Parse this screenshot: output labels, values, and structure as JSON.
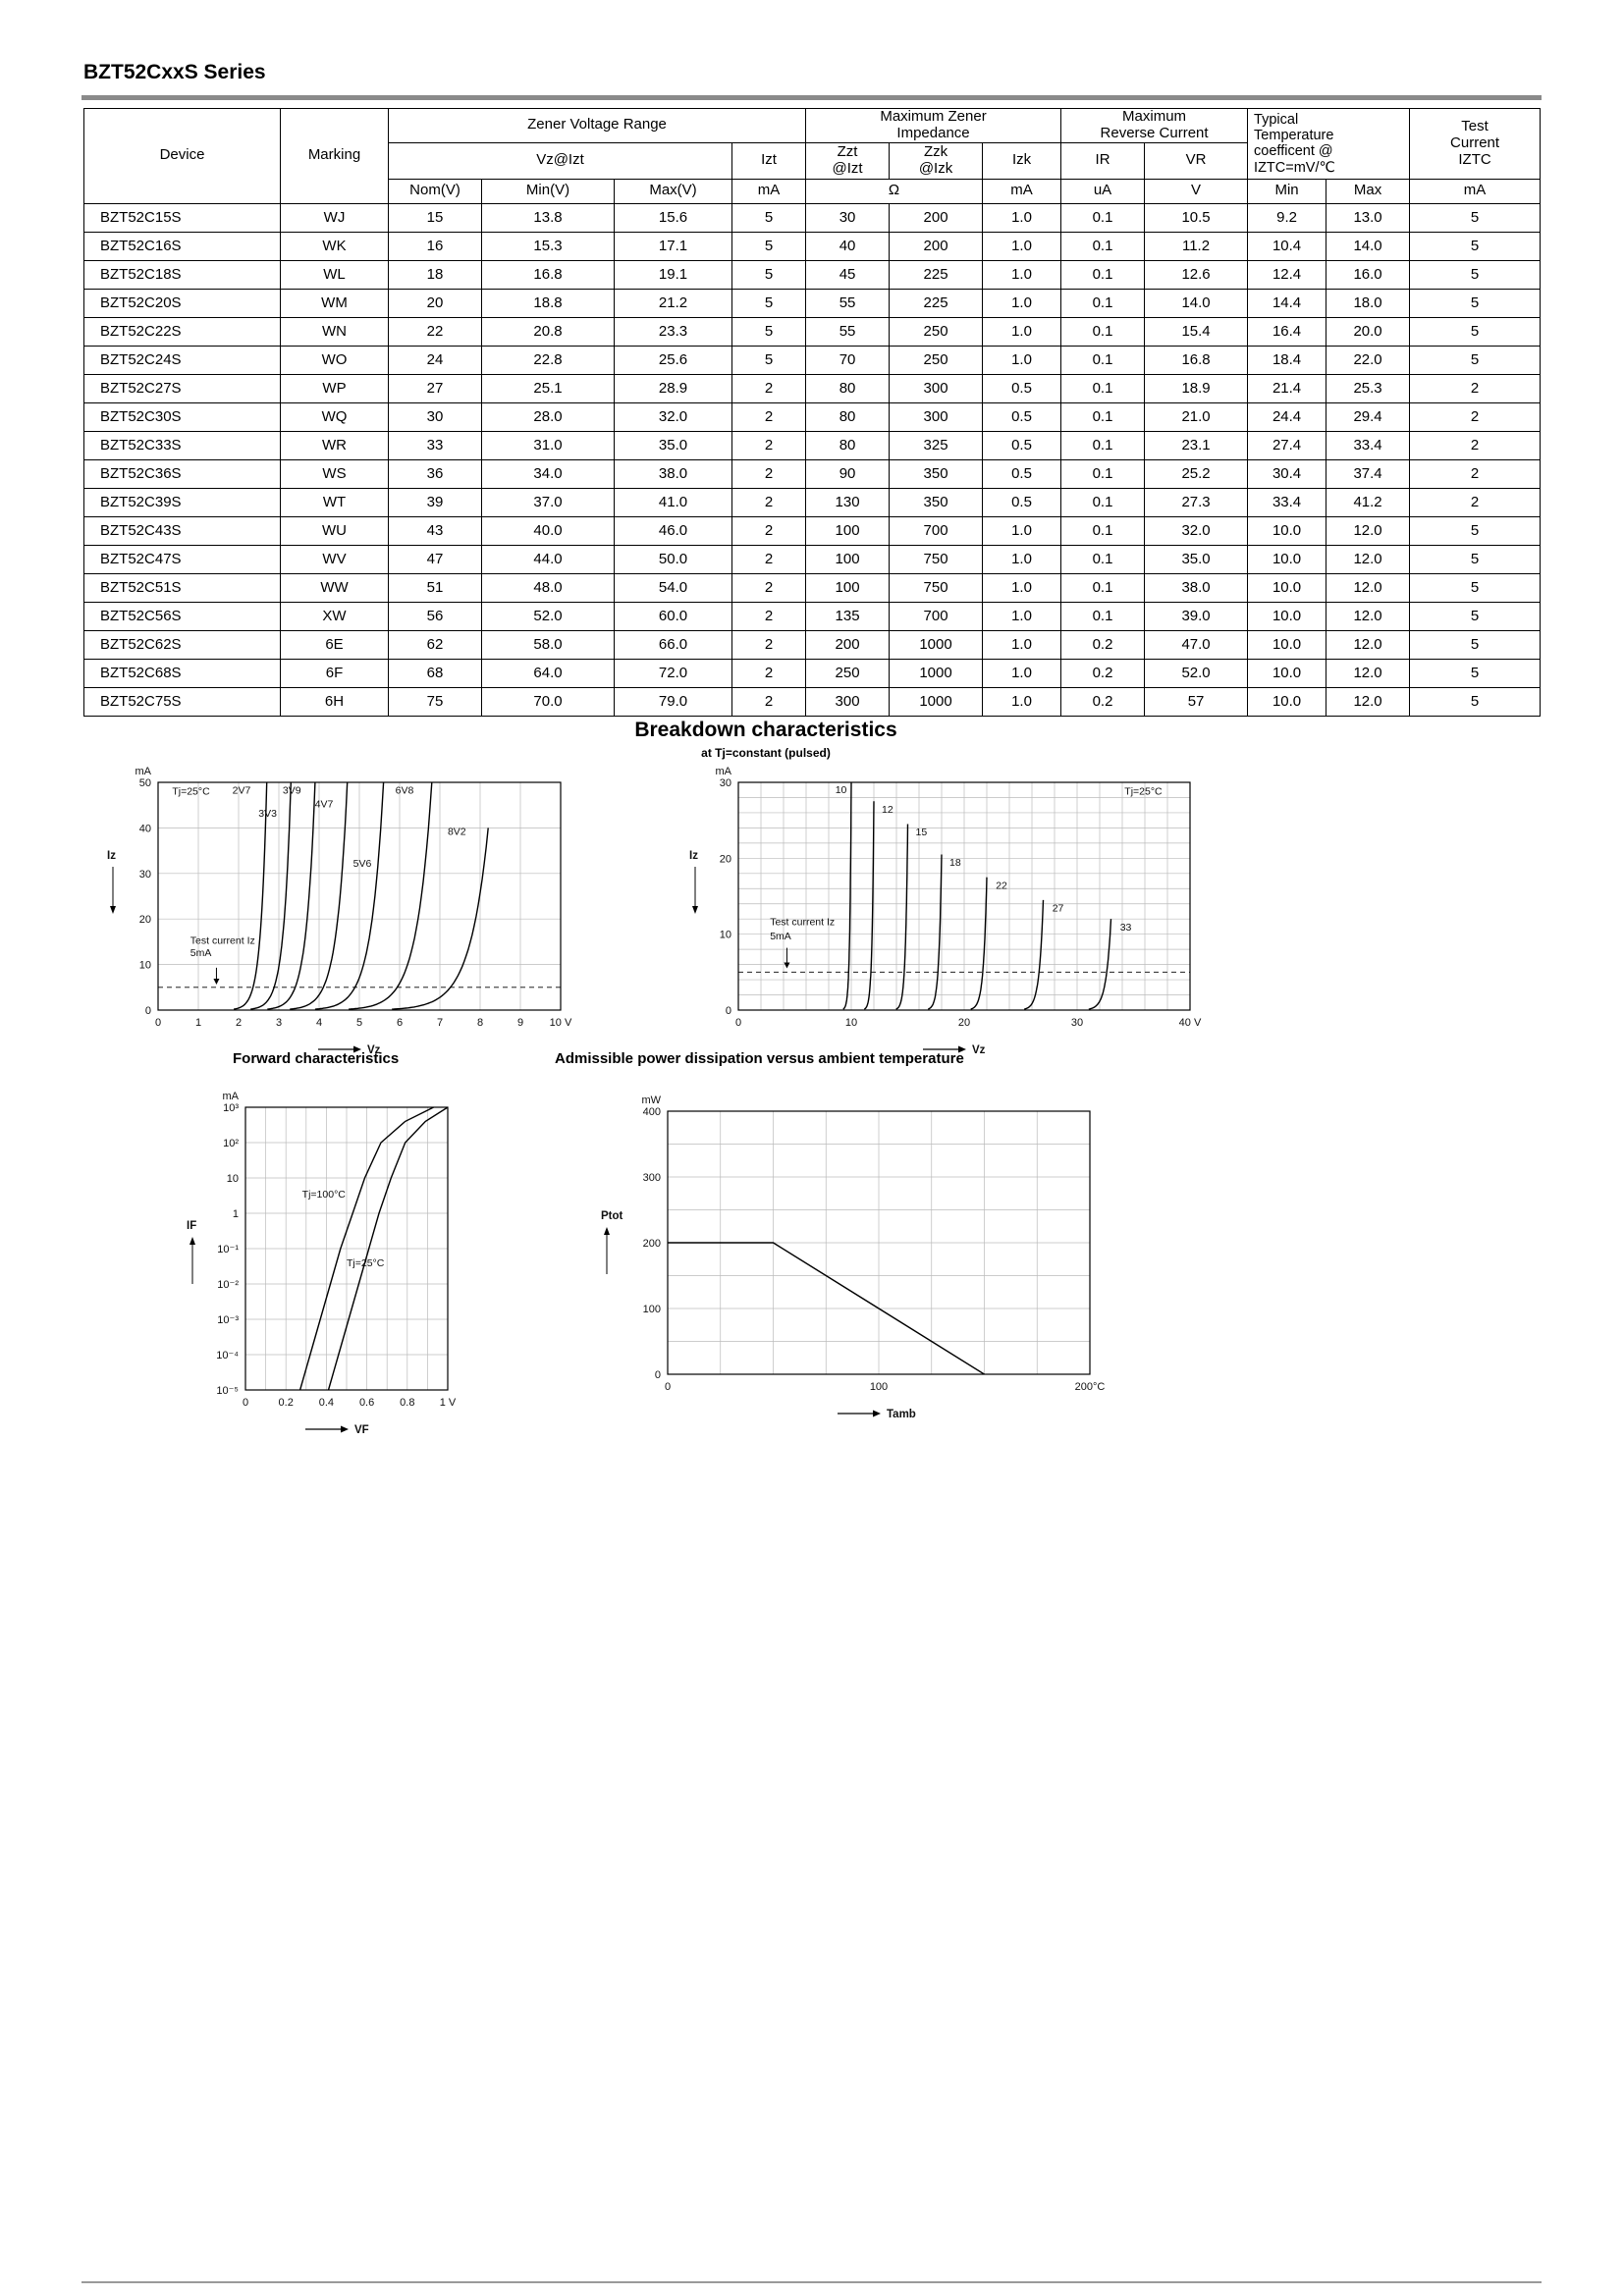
{
  "page": {
    "title": "BZT52CxxS Series",
    "section_title": "Breakdown characteristics",
    "section_subtitle": "at Tj=constant (pulsed)",
    "forward_title": "Forward characteristics",
    "power_title": "Admissible power dissipation versus ambient temperature"
  },
  "table": {
    "headers": {
      "device": "Device",
      "marking": "Marking",
      "zener_voltage_range": "Zener Voltage Range",
      "vz_izt": "Vz@Izt",
      "izt": "Izt",
      "max_zener_impedance": "Maximum Zener\nImpedance",
      "zzt": "Zzt\n@Izt",
      "zzk": "Zzk\n@Izk",
      "izk": "Izk",
      "max_reverse_current": "Maximum\nReverse Current",
      "ir": "IR",
      "vr": "VR",
      "temp_coeff": "Typical\nTemperature\ncoefficent @\nIZTC=mV/℃",
      "test_current": "Test\nCurrent\nIZTC",
      "nom_v": "Nom(V)",
      "min_v": "Min(V)",
      "max_v": "Max(V)",
      "ma": "mA",
      "ohm": "Ω",
      "ua": "uA",
      "v": "V",
      "min": "Min",
      "max": "Max"
    },
    "rows": [
      [
        "BZT52C15S",
        "WJ",
        "15",
        "13.8",
        "15.6",
        "5",
        "30",
        "200",
        "1.0",
        "0.1",
        "10.5",
        "9.2",
        "13.0",
        "5"
      ],
      [
        "BZT52C16S",
        "WK",
        "16",
        "15.3",
        "17.1",
        "5",
        "40",
        "200",
        "1.0",
        "0.1",
        "11.2",
        "10.4",
        "14.0",
        "5"
      ],
      [
        "BZT52C18S",
        "WL",
        "18",
        "16.8",
        "19.1",
        "5",
        "45",
        "225",
        "1.0",
        "0.1",
        "12.6",
        "12.4",
        "16.0",
        "5"
      ],
      [
        "BZT52C20S",
        "WM",
        "20",
        "18.8",
        "21.2",
        "5",
        "55",
        "225",
        "1.0",
        "0.1",
        "14.0",
        "14.4",
        "18.0",
        "5"
      ],
      [
        "BZT52C22S",
        "WN",
        "22",
        "20.8",
        "23.3",
        "5",
        "55",
        "250",
        "1.0",
        "0.1",
        "15.4",
        "16.4",
        "20.0",
        "5"
      ],
      [
        "BZT52C24S",
        "WO",
        "24",
        "22.8",
        "25.6",
        "5",
        "70",
        "250",
        "1.0",
        "0.1",
        "16.8",
        "18.4",
        "22.0",
        "5"
      ],
      [
        "BZT52C27S",
        "WP",
        "27",
        "25.1",
        "28.9",
        "2",
        "80",
        "300",
        "0.5",
        "0.1",
        "18.9",
        "21.4",
        "25.3",
        "2"
      ],
      [
        "BZT52C30S",
        "WQ",
        "30",
        "28.0",
        "32.0",
        "2",
        "80",
        "300",
        "0.5",
        "0.1",
        "21.0",
        "24.4",
        "29.4",
        "2"
      ],
      [
        "BZT52C33S",
        "WR",
        "33",
        "31.0",
        "35.0",
        "2",
        "80",
        "325",
        "0.5",
        "0.1",
        "23.1",
        "27.4",
        "33.4",
        "2"
      ],
      [
        "BZT52C36S",
        "WS",
        "36",
        "34.0",
        "38.0",
        "2",
        "90",
        "350",
        "0.5",
        "0.1",
        "25.2",
        "30.4",
        "37.4",
        "2"
      ],
      [
        "BZT52C39S",
        "WT",
        "39",
        "37.0",
        "41.0",
        "2",
        "130",
        "350",
        "0.5",
        "0.1",
        "27.3",
        "33.4",
        "41.2",
        "2"
      ],
      [
        "BZT52C43S",
        "WU",
        "43",
        "40.0",
        "46.0",
        "2",
        "100",
        "700",
        "1.0",
        "0.1",
        "32.0",
        "10.0",
        "12.0",
        "5"
      ],
      [
        "BZT52C47S",
        "WV",
        "47",
        "44.0",
        "50.0",
        "2",
        "100",
        "750",
        "1.0",
        "0.1",
        "35.0",
        "10.0",
        "12.0",
        "5"
      ],
      [
        "BZT52C51S",
        "WW",
        "51",
        "48.0",
        "54.0",
        "2",
        "100",
        "750",
        "1.0",
        "0.1",
        "38.0",
        "10.0",
        "12.0",
        "5"
      ],
      [
        "BZT52C56S",
        "XW",
        "56",
        "52.0",
        "60.0",
        "2",
        "135",
        "700",
        "1.0",
        "0.1",
        "39.0",
        "10.0",
        "12.0",
        "5"
      ],
      [
        "BZT52C62S",
        "6E",
        "62",
        "58.0",
        "66.0",
        "2",
        "200",
        "1000",
        "1.0",
        "0.2",
        "47.0",
        "10.0",
        "12.0",
        "5"
      ],
      [
        "BZT52C68S",
        "6F",
        "68",
        "64.0",
        "72.0",
        "2",
        "250",
        "1000",
        "1.0",
        "0.2",
        "52.0",
        "10.0",
        "12.0",
        "5"
      ],
      [
        "BZT52C75S",
        "6H",
        "75",
        "70.0",
        "79.0",
        "2",
        "300",
        "1000",
        "1.0",
        "0.2",
        "57",
        "10.0",
        "12.0",
        "5"
      ]
    ]
  },
  "chart_data": [
    {
      "id": "breakdown_low",
      "type": "line",
      "title": "Breakdown characteristics",
      "subtitle": "at Tj=constant (pulsed)",
      "xlabel": "Vz",
      "ylabel": "Iz",
      "y_unit": "mA",
      "x_unit": "V",
      "xlim": [
        0,
        10
      ],
      "ylim": [
        0,
        50
      ],
      "x_grid_step": 1,
      "y_grid_step": 10,
      "x_ticks": [
        [
          0,
          "0"
        ],
        [
          1,
          "1"
        ],
        [
          2,
          "2"
        ],
        [
          3,
          "3"
        ],
        [
          4,
          "4"
        ],
        [
          5,
          "5"
        ],
        [
          6,
          "6"
        ],
        [
          7,
          "7"
        ],
        [
          8,
          "8"
        ],
        [
          9,
          "9"
        ],
        [
          10,
          "10 V"
        ]
      ],
      "y_ticks": [
        [
          0,
          "0"
        ],
        [
          10,
          "10"
        ],
        [
          20,
          "20"
        ],
        [
          30,
          "30"
        ],
        [
          40,
          "40"
        ],
        [
          50,
          "50"
        ]
      ],
      "dash_y": 5,
      "arrow": {
        "x": 1.45,
        "y1": 9.3,
        "y2": 5.6
      },
      "annotations": [
        {
          "text": "Tj=25°C",
          "x": 0.35,
          "y": 47.3,
          "anchor": "start"
        },
        {
          "text": "Test current Iz",
          "x": 0.8,
          "y": 14.6,
          "anchor": "start"
        },
        {
          "text": "5mA",
          "x": 0.8,
          "y": 11.8,
          "anchor": "start"
        }
      ],
      "knee": 0.055,
      "series": [
        {
          "label": "2V7",
          "vz": 2.7,
          "top": 50,
          "lx": 2.3,
          "ly": 47.5,
          "anchor": "end"
        },
        {
          "label": "3V3",
          "vz": 3.3,
          "top": 50,
          "lx": 2.95,
          "ly": 42.5,
          "anchor": "end"
        },
        {
          "label": "3V9",
          "vz": 3.9,
          "top": 50,
          "lx": 3.55,
          "ly": 47.5,
          "anchor": "end"
        },
        {
          "label": "4V7",
          "vz": 4.7,
          "top": 50,
          "lx": 4.35,
          "ly": 44.5,
          "anchor": "end"
        },
        {
          "label": "5V6",
          "vz": 5.6,
          "top": 50,
          "lx": 5.3,
          "ly": 31.5,
          "anchor": "end"
        },
        {
          "label": "6V8",
          "vz": 6.8,
          "top": 50,
          "lx": 6.35,
          "ly": 47.5,
          "anchor": "end"
        },
        {
          "label": "8V2",
          "vz": 8.2,
          "top": 40,
          "lx": 7.65,
          "ly": 38.5,
          "anchor": "end"
        }
      ]
    },
    {
      "id": "breakdown_high",
      "type": "line",
      "xlabel": "Vz",
      "ylabel": "Iz",
      "y_unit": "mA",
      "x_unit": "V",
      "xlim": [
        0,
        40
      ],
      "ylim": [
        0,
        30
      ],
      "x_grid_step": 2,
      "y_grid_step": 2,
      "x_ticks": [
        [
          0,
          "0"
        ],
        [
          10,
          "10"
        ],
        [
          20,
          "20"
        ],
        [
          30,
          "30"
        ],
        [
          40,
          "40 V"
        ]
      ],
      "y_ticks": [
        [
          0,
          "0"
        ],
        [
          10,
          "10"
        ],
        [
          20,
          "20"
        ],
        [
          30,
          "30"
        ]
      ],
      "dash_y": 5,
      "arrow": {
        "x": 4.3,
        "y1": 8.2,
        "y2": 5.5
      },
      "annotations": [
        {
          "text": "Tj=25°C",
          "x": 34.2,
          "y": 28.4,
          "anchor": "start"
        },
        {
          "text": "Test current Iz",
          "x": 2.8,
          "y": 11.2,
          "anchor": "start"
        },
        {
          "text": "5mA",
          "x": 2.8,
          "y": 9.3,
          "anchor": "start"
        }
      ],
      "knee": 0.013,
      "series": [
        {
          "label": "10",
          "vz": 10,
          "top": 30,
          "lx": 9.6,
          "ly": 28.6,
          "anchor": "end"
        },
        {
          "label": "12",
          "vz": 12,
          "top": 27.5,
          "lx": 12.7,
          "ly": 26,
          "anchor": "start"
        },
        {
          "label": "15",
          "vz": 15,
          "top": 24.5,
          "lx": 15.7,
          "ly": 23,
          "anchor": "start"
        },
        {
          "label": "18",
          "vz": 18,
          "top": 20.5,
          "lx": 18.7,
          "ly": 19,
          "anchor": "start"
        },
        {
          "label": "22",
          "vz": 22,
          "top": 17.5,
          "lx": 22.8,
          "ly": 16,
          "anchor": "start"
        },
        {
          "label": "27",
          "vz": 27,
          "top": 14.5,
          "lx": 27.8,
          "ly": 13,
          "anchor": "start"
        },
        {
          "label": "33",
          "vz": 33,
          "top": 12,
          "lx": 33.8,
          "ly": 10.5,
          "anchor": "start"
        }
      ]
    },
    {
      "id": "forward",
      "type": "line",
      "title": "Forward characteristics",
      "xlabel": "VF",
      "ylabel": "IF",
      "y_unit": "mA",
      "x_unit": "V",
      "xlim": [
        0,
        1
      ],
      "ylog": {
        "min_exp": -5,
        "max_exp": 3
      },
      "x_grid_step": 0.1,
      "x_ticks": [
        [
          0,
          "0"
        ],
        [
          0.2,
          "0.2"
        ],
        [
          0.4,
          "0.4"
        ],
        [
          0.6,
          "0.6"
        ],
        [
          0.8,
          "0.8"
        ],
        [
          1,
          "1 V"
        ]
      ],
      "y_ticks": [
        [
          3,
          "10³"
        ],
        [
          2,
          "10²"
        ],
        [
          1,
          "10"
        ],
        [
          0,
          "1"
        ],
        [
          -1,
          "10⁻¹"
        ],
        [
          -2,
          "10⁻²"
        ],
        [
          -3,
          "10⁻³"
        ],
        [
          -4,
          "10⁻⁴"
        ],
        [
          -5,
          "10⁻⁵"
        ]
      ],
      "annotations": [
        {
          "text": "Tj=100°C",
          "x": 0.28,
          "y_exp": 0.45,
          "anchor": "start"
        },
        {
          "text": "Tj=25°C",
          "x": 0.5,
          "y_exp": -1.5,
          "anchor": "start"
        }
      ],
      "series": [
        {
          "label": "Tj=100°C",
          "points": [
            [
              0.27,
              -5
            ],
            [
              0.32,
              -4
            ],
            [
              0.37,
              -3
            ],
            [
              0.42,
              -2
            ],
            [
              0.47,
              -1
            ],
            [
              0.53,
              0
            ],
            [
              0.59,
              1
            ],
            [
              0.67,
              2
            ],
            [
              0.79,
              2.6
            ],
            [
              0.93,
              3
            ]
          ]
        },
        {
          "label": "Tj=25°C",
          "points": [
            [
              0.41,
              -5
            ],
            [
              0.46,
              -4
            ],
            [
              0.51,
              -3
            ],
            [
              0.56,
              -2
            ],
            [
              0.61,
              -1
            ],
            [
              0.66,
              0
            ],
            [
              0.72,
              1
            ],
            [
              0.79,
              2
            ],
            [
              0.89,
              2.6
            ],
            [
              1.0,
              3
            ]
          ]
        }
      ]
    },
    {
      "id": "power",
      "type": "line",
      "title": "Admissible power dissipation versus ambient temperature",
      "xlabel": "Tamb",
      "ylabel": "Ptot",
      "y_unit": "mW",
      "x_unit": "°C",
      "xlim": [
        0,
        200
      ],
      "ylim": [
        0,
        400
      ],
      "x_grid_step": 25,
      "y_grid_step": 50,
      "x_ticks": [
        [
          0,
          "0"
        ],
        [
          100,
          "100"
        ],
        [
          200,
          "200°C"
        ]
      ],
      "y_ticks": [
        [
          0,
          "0"
        ],
        [
          100,
          "100"
        ],
        [
          200,
          "200"
        ],
        [
          300,
          "300"
        ],
        [
          400,
          "400"
        ]
      ],
      "series": [
        {
          "label": "Ptot",
          "points": [
            [
              0,
              200
            ],
            [
              50,
              200
            ],
            [
              150,
              0
            ]
          ]
        }
      ]
    }
  ]
}
